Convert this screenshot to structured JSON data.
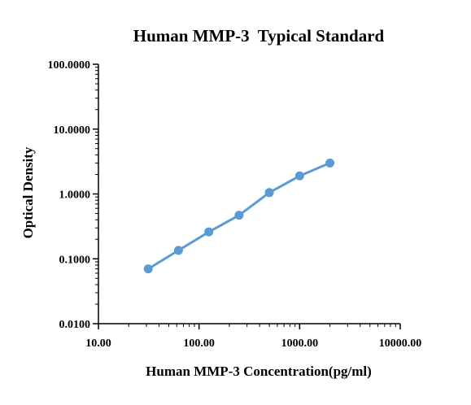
{
  "chart_data": {
    "type": "line",
    "title": "Human MMP-3  Typical Standard",
    "xlabel": "Human MMP-3 Concentration(pg/ml)",
    "ylabel": "Optical Density",
    "x_scale": "log",
    "y_scale": "log",
    "xlim": [
      10,
      10000
    ],
    "ylim": [
      0.01,
      100
    ],
    "x_ticks": [
      10,
      100,
      1000,
      10000
    ],
    "x_tick_labels": [
      "10.00",
      "100.00",
      "1000.00",
      "10000.00"
    ],
    "y_ticks": [
      0.01,
      0.1,
      1,
      10,
      100
    ],
    "y_tick_labels": [
      "0.0100",
      "0.1000",
      "1.0000",
      "10.0000",
      "100.0000"
    ],
    "grid": false,
    "series": [
      {
        "color": "#5b9bd5",
        "x": [
          31.25,
          62.5,
          125,
          250,
          500,
          1000,
          2000
        ],
        "y": [
          0.07,
          0.135,
          0.26,
          0.47,
          1.05,
          1.9,
          3.0
        ]
      }
    ]
  }
}
